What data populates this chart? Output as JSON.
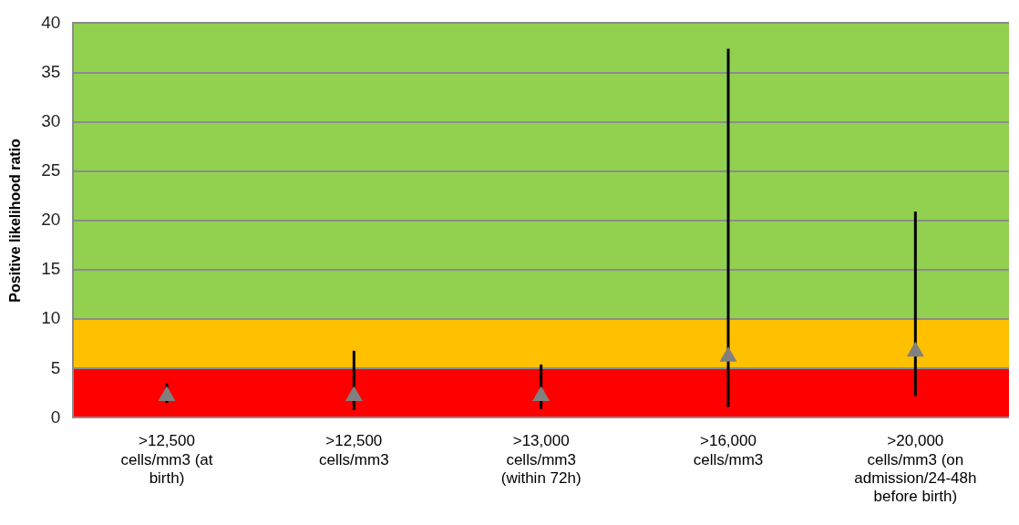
{
  "chart_data": {
    "type": "scatter",
    "ylabel": "Positive likelihood ratio",
    "categories": [
      ">12,500 cells/mm3 (at birth)",
      ">12,500 cells/mm3",
      ">13,000 cells/mm3 (within 72h)",
      ">16,000 cells/mm3",
      ">20,000 cells/mm3 (on admission/24-48h before birth)"
    ],
    "series": [
      {
        "color": "#808080",
        "values": [
          2.2,
          2.2,
          2.2,
          6.2,
          6.7
        ],
        "errors": [
          [
            1.5,
            3.5
          ],
          [
            0.8,
            6.8
          ],
          [
            0.9,
            5.4
          ],
          [
            1.1,
            37.4
          ],
          [
            2.2,
            20.9
          ]
        ]
      }
    ],
    "ylim": [
      0,
      40
    ],
    "yticks": [
      0,
      5,
      10,
      15,
      20,
      25,
      30,
      35,
      40
    ],
    "bands": [
      {
        "axis": "y",
        "from": 0,
        "to": 5,
        "color": "#ff0000"
      },
      {
        "axis": "y",
        "from": 5,
        "to": 10,
        "color": "#ffc000"
      },
      {
        "axis": "y",
        "from": 10,
        "to": 40,
        "color": "#92d050"
      }
    ],
    "grid": "y",
    "legend": false,
    "marker": "triangle"
  }
}
